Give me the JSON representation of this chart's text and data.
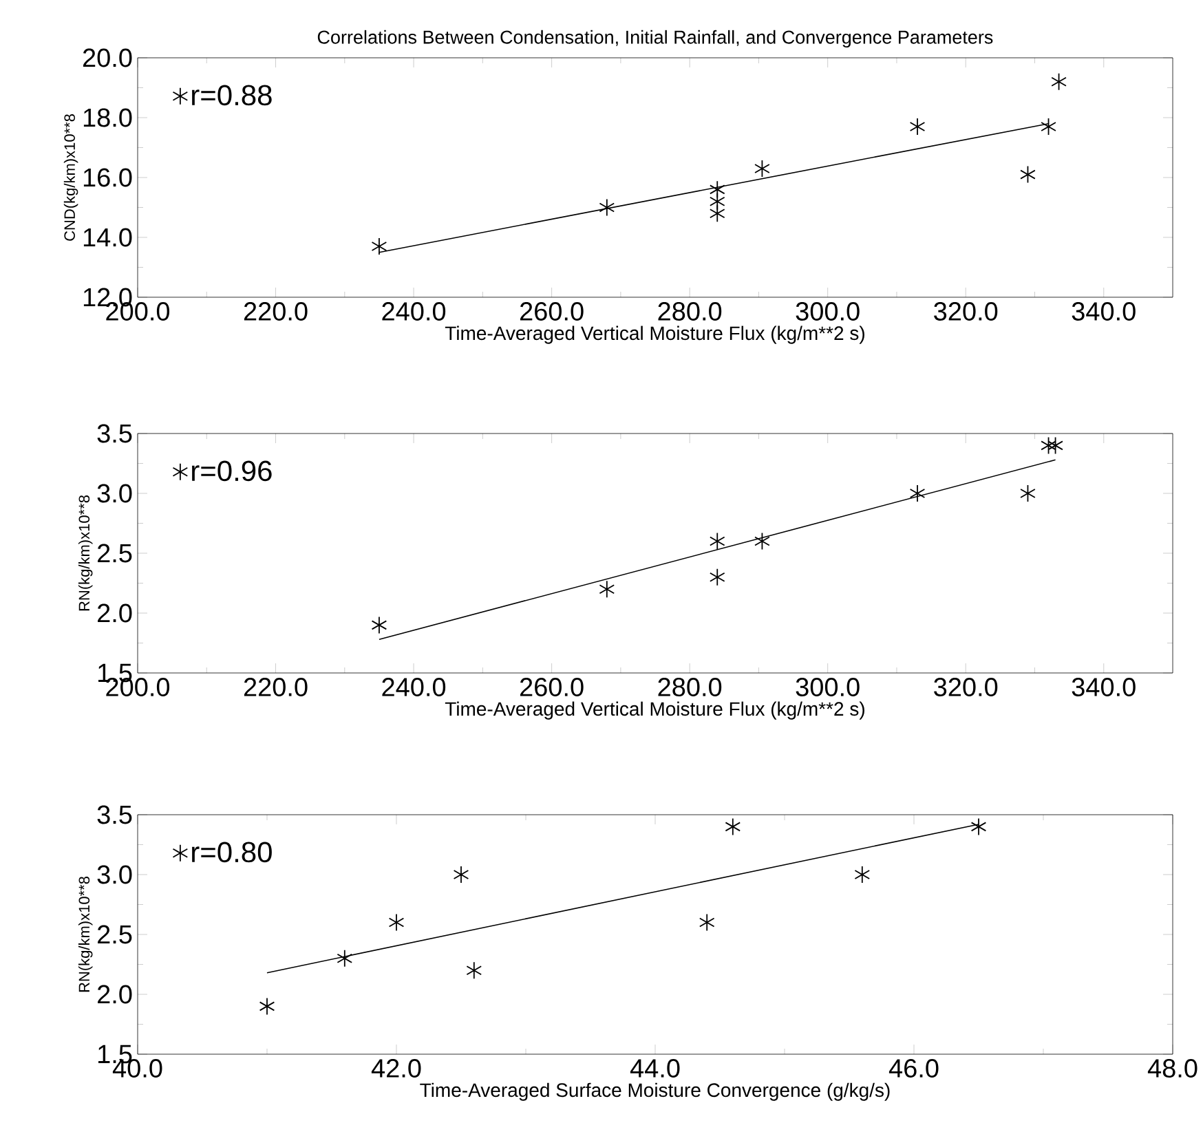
{
  "chart_data": [
    {
      "type": "scatter",
      "title": "Correlations Between Condensation, Initial Rainfall, and Convergence Parameters",
      "xlabel": "Time-Averaged Vertical Moisture Flux (kg/m**2 s)",
      "ylabel": "CND(kg/km)x10**8",
      "xlim": [
        200,
        350
      ],
      "ylim": [
        12,
        20
      ],
      "xticks": [
        {
          "value": 200,
          "label": "200.0"
        },
        {
          "value": 220,
          "label": "220.0"
        },
        {
          "value": 240,
          "label": "240.0"
        },
        {
          "value": 260,
          "label": "260.0"
        },
        {
          "value": 280,
          "label": "280.0"
        },
        {
          "value": 300,
          "label": "300.0"
        },
        {
          "value": 320,
          "label": "320.0"
        },
        {
          "value": 340,
          "label": "340.0"
        }
      ],
      "yticks": [
        {
          "value": 12,
          "label": "12.0"
        },
        {
          "value": 14,
          "label": "14.0"
        },
        {
          "value": 16,
          "label": "16.0"
        },
        {
          "value": 18,
          "label": "18.0"
        },
        {
          "value": 20,
          "label": "20.0"
        }
      ],
      "legend": "top left",
      "grid": false,
      "series": [
        {
          "name": "r=0.88",
          "marker": "cross",
          "color": "#000000",
          "x": [
            235,
            268,
            284,
            284,
            284,
            290.5,
            313,
            329,
            332,
            333.5
          ],
          "values": [
            13.7,
            15.0,
            15.6,
            15.2,
            14.8,
            16.3,
            17.7,
            16.1,
            17.7,
            19.2
          ]
        },
        {
          "type": "line",
          "marker": "none",
          "color": "#000000",
          "x": [
            235,
            332
          ],
          "values": [
            13.5,
            17.8
          ]
        }
      ]
    },
    {
      "type": "scatter",
      "xlabel": "Time-Averaged Vertical Moisture Flux (kg/m**2 s)",
      "ylabel": "RN(kg/km)x10**8",
      "xlim": [
        200,
        350
      ],
      "ylim": [
        1.5,
        3.5
      ],
      "xticks": [
        {
          "value": 200,
          "label": "200.0"
        },
        {
          "value": 220,
          "label": "220.0"
        },
        {
          "value": 240,
          "label": "240.0"
        },
        {
          "value": 260,
          "label": "260.0"
        },
        {
          "value": 280,
          "label": "280.0"
        },
        {
          "value": 300,
          "label": "300.0"
        },
        {
          "value": 320,
          "label": "320.0"
        },
        {
          "value": 340,
          "label": "340.0"
        }
      ],
      "yticks": [
        1.5,
        {
          "value": 2,
          "label": "2.0"
        },
        2.5,
        {
          "value": 3,
          "label": "3.0"
        },
        3.5
      ],
      "legend": "top left",
      "grid": false,
      "series": [
        {
          "name": "r=0.96",
          "marker": "cross",
          "color": "#000000",
          "x": [
            235,
            268,
            284,
            284,
            290.5,
            313,
            329,
            332,
            333
          ],
          "values": [
            1.9,
            2.2,
            2.6,
            2.3,
            2.6,
            3.0,
            3.0,
            3.4,
            3.4
          ]
        },
        {
          "type": "line",
          "marker": "none",
          "color": "#000000",
          "x": [
            235,
            333
          ],
          "values": [
            1.78,
            3.28
          ]
        }
      ]
    },
    {
      "type": "scatter",
      "xlabel": "Time-Averaged Surface Moisture Convergence (g/kg/s)",
      "ylabel": "RN(kg/km)x10**8",
      "xlim": [
        40,
        48
      ],
      "ylim": [
        1.5,
        3.5
      ],
      "xticks": [
        {
          "value": 40,
          "label": "40.0"
        },
        {
          "value": 42,
          "label": "42.0"
        },
        {
          "value": 44,
          "label": "44.0"
        },
        {
          "value": 46,
          "label": "46.0"
        },
        {
          "value": 48,
          "label": "48.0"
        }
      ],
      "yticks": [
        1.5,
        {
          "value": 2,
          "label": "2.0"
        },
        2.5,
        {
          "value": 3,
          "label": "3.0"
        },
        3.5
      ],
      "legend": "top left",
      "grid": false,
      "series": [
        {
          "name": "r=0.80",
          "marker": "cross",
          "color": "#000000",
          "x": [
            41.0,
            41.6,
            42.0,
            42.5,
            42.6,
            44.4,
            44.6,
            45.6,
            46.5
          ],
          "values": [
            1.9,
            2.3,
            2.6,
            3.0,
            2.2,
            2.6,
            3.4,
            3.0,
            3.4
          ]
        },
        {
          "type": "line",
          "marker": "none",
          "color": "#000000",
          "x": [
            41.0,
            46.5
          ],
          "values": [
            2.18,
            3.42
          ]
        }
      ]
    }
  ]
}
